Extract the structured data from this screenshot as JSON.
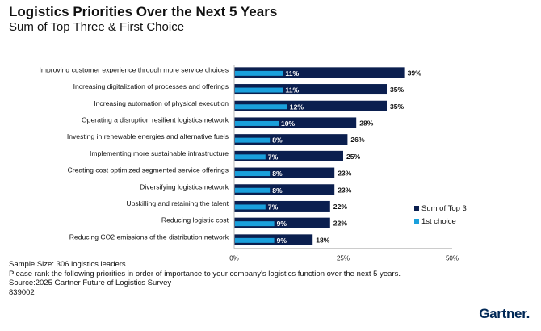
{
  "chart_data": {
    "type": "bar",
    "orientation": "horizontal",
    "title": "Logistics Priorities Over the Next 5 Years",
    "subtitle": "Sum of Top Three & First Choice",
    "categories": [
      "Improving customer experience through more service choices",
      "Increasing digitalization of processes and offerings",
      "Increasing automation of physical execution",
      "Operating a disruption resilient logistics network",
      "Investing in renewable energies and alternative fuels",
      "Implementing more sustainable infrastructure",
      "Creating cost optimized segmented service offerings",
      "Diversifying logistics network",
      "Upskilling and retaining the talent",
      "Reducing logistic cost",
      "Reducing CO2 emissions of the distribution network"
    ],
    "series": [
      {
        "name": "Sum of Top 3",
        "color": "#0b1f4f",
        "values": [
          39,
          35,
          35,
          28,
          26,
          25,
          23,
          23,
          22,
          22,
          18
        ]
      },
      {
        "name": "1st choice",
        "color": "#1aa0dc",
        "values": [
          11,
          11,
          12,
          10,
          8,
          7,
          8,
          8,
          7,
          9,
          9
        ]
      }
    ],
    "xlim": [
      0,
      50
    ],
    "xticks": [
      "0%",
      "25%",
      "50%"
    ],
    "value_suffix": "%",
    "grid": false,
    "legend_position": "bottom-right"
  },
  "notes": [
    "Sample Size: 306 logistics leaders",
    "Please rank the following priorities in order of importance to your company's logistics function over the next 5 years.",
    "Source:2025 Gartner Future of Logistics Survey",
    "839002"
  ],
  "logo": "Gartner."
}
